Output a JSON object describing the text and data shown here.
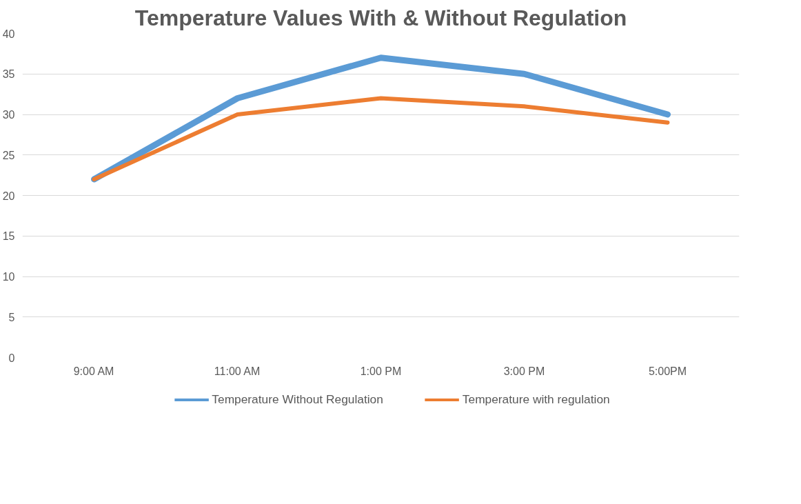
{
  "chart_data": {
    "type": "line",
    "title": "Temperature Values With & Without Regulation",
    "categories": [
      "9:00 AM",
      "11:00 AM",
      "1:00 PM",
      "3:00 PM",
      "5:00PM"
    ],
    "series": [
      {
        "name": "Temperature Without Regulation",
        "color": "#5b9bd5",
        "values": [
          22,
          32,
          37,
          35,
          30
        ]
      },
      {
        "name": "Temperature with regulation",
        "color": "#ed7d31",
        "values": [
          22,
          30,
          32,
          31,
          29
        ]
      }
    ],
    "ylim": [
      0,
      40
    ],
    "yticks": [
      0,
      5,
      10,
      15,
      20,
      25,
      30,
      35,
      40
    ],
    "grid": "y",
    "legend": "bottom",
    "marker": "none",
    "line_style": "solid"
  }
}
